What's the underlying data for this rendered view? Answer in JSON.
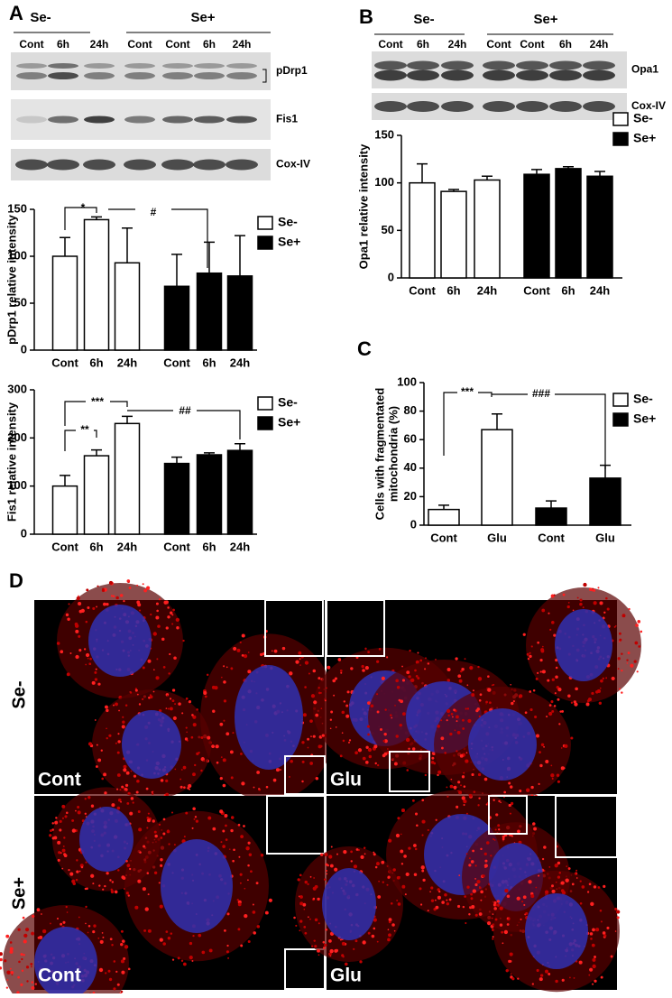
{
  "figure": {
    "panel_letters": [
      "A",
      "B",
      "C",
      "D"
    ],
    "blot_a": {
      "groups": [
        "Se-",
        "Se+"
      ],
      "lanes": [
        "Cont",
        "6h",
        "24h",
        "Cont",
        "Cont",
        "6h",
        "24h"
      ],
      "rows": [
        "pDrp1",
        "Fis1",
        "Cox-IV"
      ]
    },
    "blot_b": {
      "groups": [
        "Se-",
        "Se+"
      ],
      "lanes": [
        "Cont",
        "6h",
        "24h",
        "Cont",
        "Cont",
        "6h",
        "24h"
      ],
      "rows": [
        "Opa1",
        "Cox-IV"
      ]
    },
    "micrographs": {
      "rows": [
        "Se-",
        "Se+"
      ],
      "labels": [
        "Cont",
        "Glu",
        "Cont",
        "Glu"
      ]
    }
  },
  "chart_data": [
    {
      "type": "bar",
      "ylabel": "pDrp1 relative intensity",
      "categories": [
        "Cont",
        "6h",
        "24h",
        "Cont",
        "6h",
        "24h"
      ],
      "series": [
        {
          "name": "Se-",
          "color": "#ffffff",
          "values": [
            100,
            139,
            93,
            null,
            null,
            null
          ],
          "errors": [
            20,
            3,
            37,
            null,
            null,
            null
          ]
        },
        {
          "name": "Se+",
          "color": "#000000",
          "values": [
            null,
            null,
            null,
            68,
            82,
            79
          ],
          "errors": [
            null,
            null,
            null,
            34,
            33,
            43
          ]
        }
      ],
      "ylim": [
        0,
        150
      ],
      "yticks": [
        0,
        50,
        100,
        150
      ],
      "annotations": [
        "*",
        "#"
      ]
    },
    {
      "type": "bar",
      "ylabel": "Fis1 relative intensity",
      "categories": [
        "Cont",
        "6h",
        "24h",
        "Cont",
        "6h",
        "24h"
      ],
      "series": [
        {
          "name": "Se-",
          "color": "#ffffff",
          "values": [
            100,
            163,
            230,
            null,
            null,
            null
          ],
          "errors": [
            22,
            12,
            15,
            null,
            null,
            null
          ]
        },
        {
          "name": "Se+",
          "color": "#000000",
          "values": [
            null,
            null,
            null,
            147,
            165,
            174
          ],
          "errors": [
            null,
            null,
            null,
            13,
            4,
            14
          ]
        }
      ],
      "ylim": [
        0,
        300
      ],
      "yticks": [
        0,
        100,
        200,
        300
      ],
      "annotations": [
        "***",
        "**",
        "##"
      ]
    },
    {
      "type": "bar",
      "ylabel": "Opa1 relative intensity",
      "categories": [
        "Cont",
        "6h",
        "24h",
        "Cont",
        "6h",
        "24h"
      ],
      "series": [
        {
          "name": "Se-",
          "color": "#ffffff",
          "values": [
            100,
            91,
            103,
            null,
            null,
            null
          ],
          "errors": [
            20,
            2,
            4,
            null,
            null,
            null
          ]
        },
        {
          "name": "Se+",
          "color": "#000000",
          "values": [
            null,
            null,
            null,
            109,
            115,
            107
          ],
          "errors": [
            null,
            null,
            null,
            5,
            2,
            5
          ]
        }
      ],
      "ylim": [
        0,
        150
      ],
      "yticks": [
        0,
        50,
        100,
        150
      ],
      "annotations": []
    },
    {
      "type": "bar",
      "ylabel": [
        "Cells with fragmentated",
        "mitochondria (%)"
      ],
      "categories": [
        "Cont",
        "Glu",
        "Cont",
        "Glu"
      ],
      "series": [
        {
          "name": "Se-",
          "color": "#ffffff",
          "values": [
            11,
            67,
            null,
            null
          ],
          "errors": [
            3,
            11,
            null,
            null
          ]
        },
        {
          "name": "Se+",
          "color": "#000000",
          "values": [
            null,
            null,
            12,
            33
          ],
          "errors": [
            null,
            null,
            5,
            9
          ]
        }
      ],
      "ylim": [
        0,
        100
      ],
      "yticks": [
        0,
        20,
        40,
        60,
        80,
        100
      ],
      "annotations": [
        "***",
        "###"
      ]
    }
  ]
}
